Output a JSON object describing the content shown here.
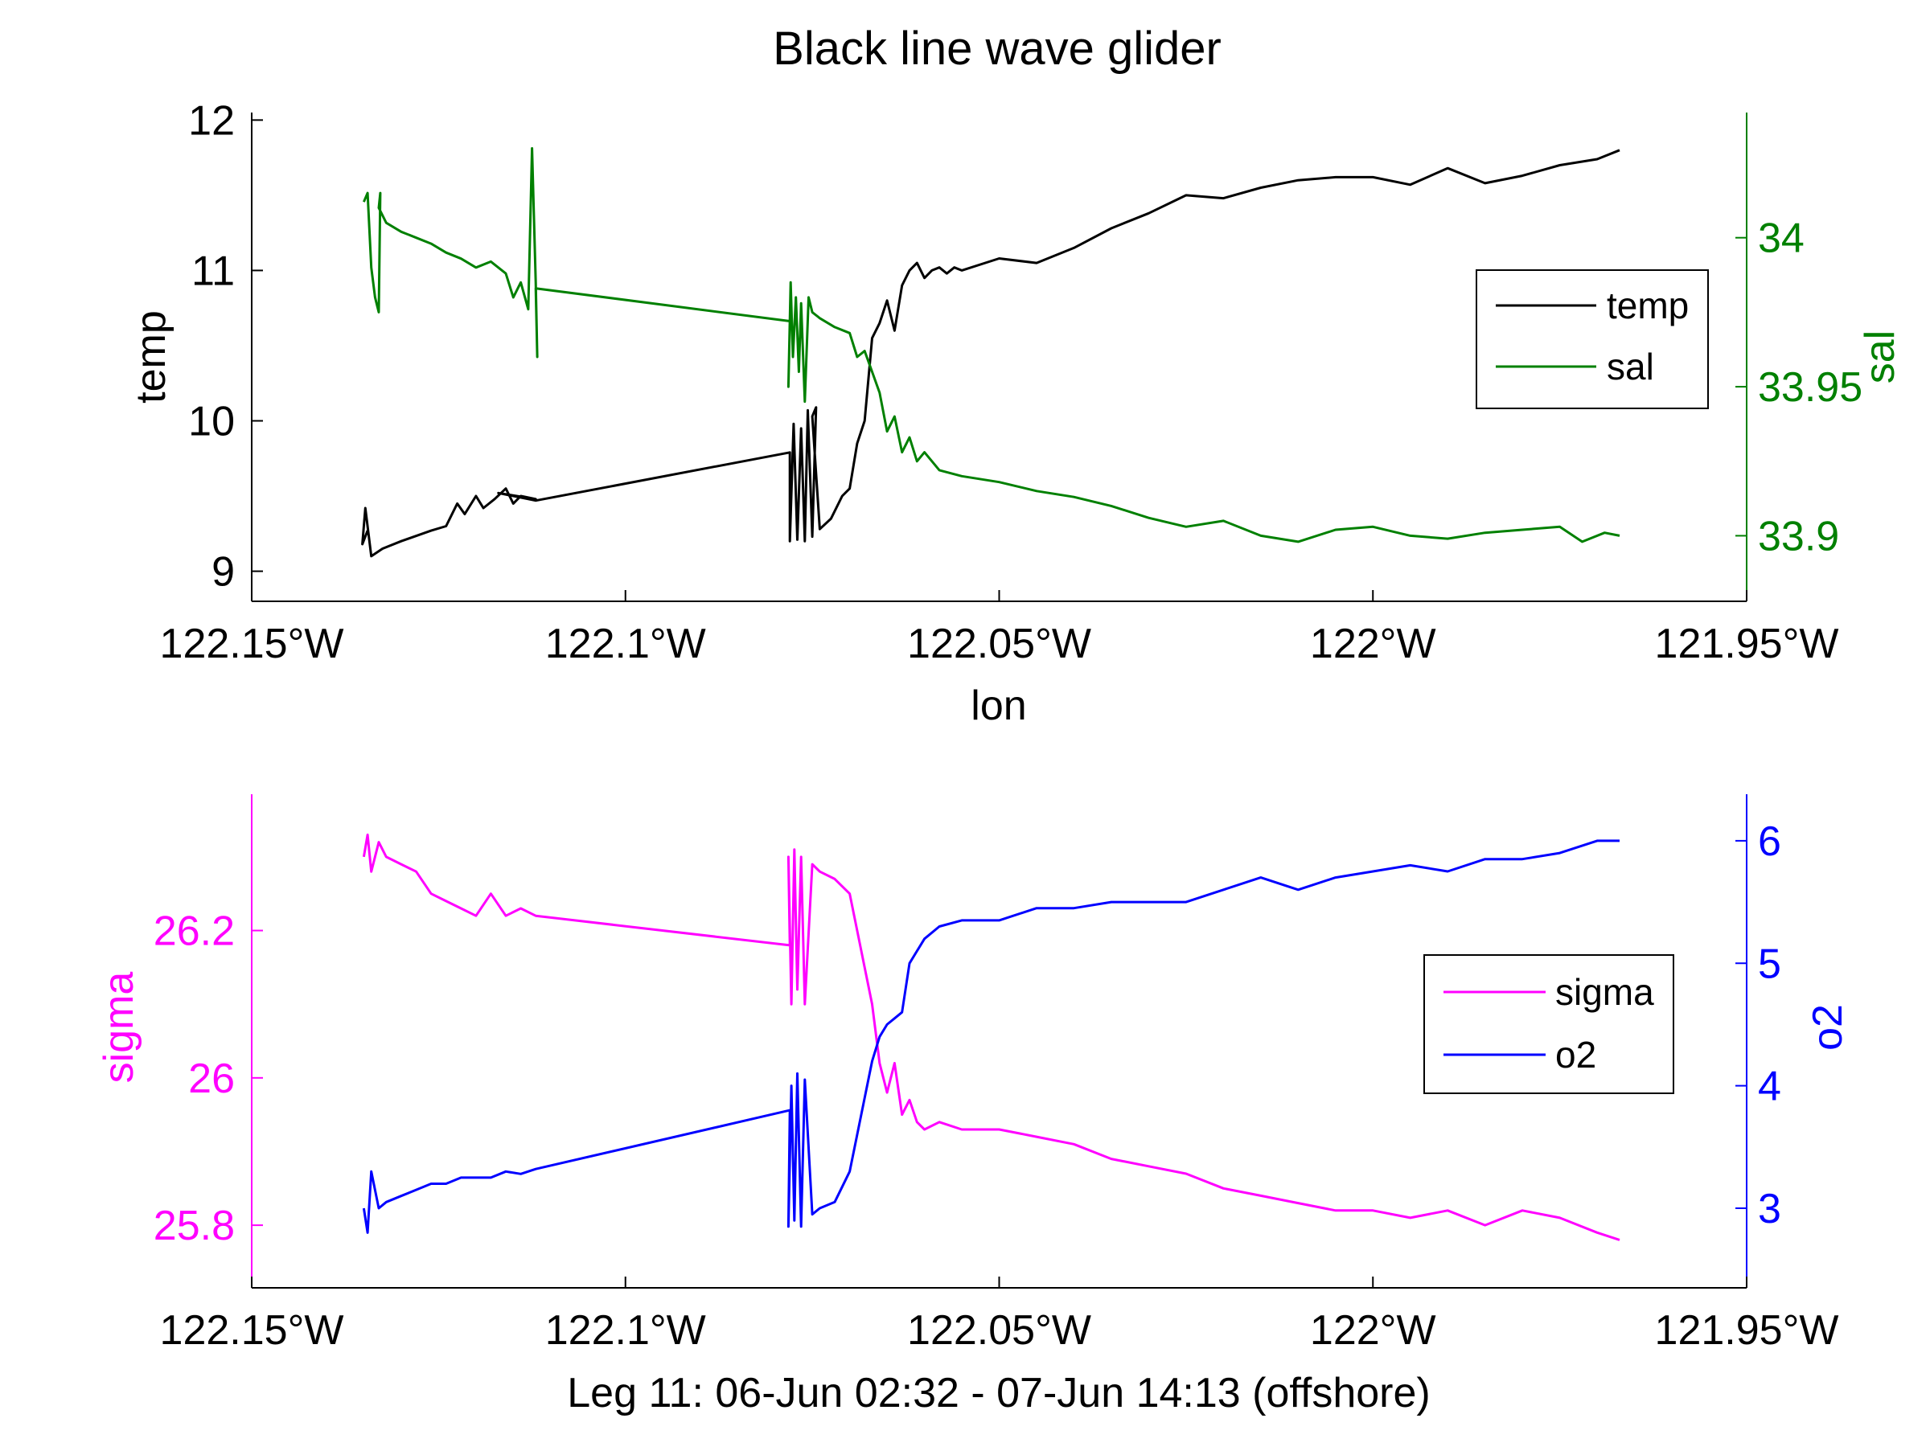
{
  "figure": {
    "title": "Black line wave glider"
  },
  "colors": {
    "temp": "#000000",
    "sal": "#008000",
    "sigma": "#ff00ff",
    "o2": "#0000ff",
    "axis": "#000000"
  },
  "chart_data": [
    {
      "type": "line",
      "panel": "top",
      "xlabel": "lon",
      "xlim": [
        -122.15,
        -121.95
      ],
      "x_ticks": [
        -122.15,
        -122.1,
        -122.05,
        -122.0,
        -121.95
      ],
      "x_tick_labels": [
        "122.15°W",
        "122.1°W",
        "122.05°W",
        "122°W",
        "121.95°W"
      ],
      "left_axis": {
        "label": "temp",
        "ylim": [
          8.8,
          12.05
        ],
        "ticks": [
          9,
          10,
          11,
          12
        ],
        "tick_labels": [
          "9",
          "10",
          "11",
          "12"
        ]
      },
      "right_axis": {
        "label": "sal",
        "ylim": [
          33.878,
          34.042
        ],
        "ticks": [
          33.9,
          33.95,
          34.0
        ],
        "tick_labels": [
          "33.9",
          "33.95",
          "34"
        ]
      },
      "legend": {
        "position": "top-right",
        "entries": [
          "temp",
          "sal"
        ]
      },
      "series": [
        {
          "name": "temp",
          "axis": "left",
          "x": [
            -122.1345,
            -122.1352,
            -122.1348,
            -122.134,
            -122.1325,
            -122.13,
            -122.126,
            -122.124,
            -122.1225,
            -122.1215,
            -122.12,
            -122.119,
            -122.1175,
            -122.116,
            -122.115,
            -122.114,
            -122.112,
            -122.117,
            -122.112,
            -122.078,
            -122.078,
            -122.0775,
            -122.077,
            -122.0765,
            -122.076,
            -122.0756,
            -122.075,
            -122.0745,
            -122.075,
            -122.074,
            -122.0725,
            -122.071,
            -122.07,
            -122.069,
            -122.068,
            -122.067,
            -122.066,
            -122.065,
            -122.064,
            -122.063,
            -122.062,
            -122.061,
            -122.06,
            -122.059,
            -122.058,
            -122.057,
            -122.056,
            -122.055,
            -122.05,
            -122.045,
            -122.04,
            -122.035,
            -122.03,
            -122.025,
            -122.02,
            -122.015,
            -122.01,
            -122.005,
            -122.0,
            -121.995,
            -121.99,
            -121.985,
            -121.98,
            -121.975,
            -121.97,
            -121.967
          ],
          "values": [
            9.27,
            9.18,
            9.42,
            9.1,
            9.15,
            9.2,
            9.27,
            9.3,
            9.45,
            9.38,
            9.5,
            9.42,
            9.48,
            9.55,
            9.45,
            9.5,
            9.48,
            9.52,
            9.47,
            9.79,
            9.2,
            9.98,
            9.21,
            9.95,
            9.2,
            10.07,
            9.23,
            10.09,
            10.03,
            9.28,
            9.35,
            9.5,
            9.55,
            9.85,
            10.0,
            10.55,
            10.65,
            10.8,
            10.6,
            10.9,
            11.0,
            11.05,
            10.95,
            11.0,
            11.02,
            10.98,
            11.02,
            11.0,
            11.08,
            11.05,
            11.15,
            11.28,
            11.38,
            11.5,
            11.48,
            11.55,
            11.6,
            11.62,
            11.62,
            11.57,
            11.68,
            11.58,
            11.63,
            11.7,
            11.74,
            11.8
          ]
        },
        {
          "name": "sal",
          "axis": "right",
          "x": [
            -122.135,
            -122.1345,
            -122.134,
            -122.1335,
            -122.133,
            -122.1328,
            -122.133,
            -122.132,
            -122.13,
            -122.128,
            -122.126,
            -122.124,
            -122.122,
            -122.12,
            -122.118,
            -122.116,
            -122.115,
            -122.114,
            -122.113,
            -122.1125,
            -122.112,
            -122.1118,
            -122.112,
            -122.078,
            -122.0782,
            -122.0779,
            -122.0776,
            -122.0772,
            -122.0768,
            -122.0765,
            -122.076,
            -122.0755,
            -122.075,
            -122.074,
            -122.072,
            -122.07,
            -122.069,
            -122.068,
            -122.067,
            -122.066,
            -122.065,
            -122.064,
            -122.063,
            -122.062,
            -122.061,
            -122.06,
            -122.058,
            -122.055,
            -122.05,
            -122.045,
            -122.04,
            -122.035,
            -122.03,
            -122.025,
            -122.02,
            -122.015,
            -122.01,
            -122.005,
            -122.0,
            -121.995,
            -121.99,
            -121.985,
            -121.98,
            -121.975,
            -121.972,
            -121.969,
            -121.967
          ],
          "values": [
            34.012,
            34.015,
            33.99,
            33.98,
            33.975,
            34.015,
            34.01,
            34.005,
            34.002,
            34.0,
            33.998,
            33.995,
            33.993,
            33.99,
            33.992,
            33.988,
            33.98,
            33.985,
            33.976,
            34.03,
            33.985,
            33.96,
            33.983,
            33.972,
            33.95,
            33.985,
            33.96,
            33.98,
            33.955,
            33.978,
            33.945,
            33.98,
            33.975,
            33.973,
            33.97,
            33.968,
            33.96,
            33.962,
            33.955,
            33.948,
            33.935,
            33.94,
            33.928,
            33.933,
            33.925,
            33.928,
            33.922,
            33.92,
            33.918,
            33.915,
            33.913,
            33.91,
            33.906,
            33.903,
            33.905,
            33.9,
            33.898,
            33.902,
            33.903,
            33.9,
            33.899,
            33.901,
            33.902,
            33.903,
            33.898,
            33.901,
            33.9
          ]
        }
      ]
    },
    {
      "type": "line",
      "panel": "bottom",
      "xlabel": "Leg 11: 06-Jun 02:32 - 07-Jun 14:13 (offshore)",
      "xlim": [
        -122.15,
        -121.95
      ],
      "x_ticks": [
        -122.15,
        -122.1,
        -122.05,
        -122.0,
        -121.95
      ],
      "x_tick_labels": [
        "122.15°W",
        "122.1°W",
        "122.05°W",
        "122°W",
        "121.95°W"
      ],
      "left_axis": {
        "label": "sigma",
        "ylim": [
          25.715,
          26.385
        ],
        "ticks": [
          25.8,
          26.0,
          26.2
        ],
        "tick_labels": [
          "25.8",
          "26",
          "26.2"
        ]
      },
      "right_axis": {
        "label": "o2",
        "ylim": [
          2.35,
          6.38
        ],
        "ticks": [
          3,
          4,
          5,
          6
        ],
        "tick_labels": [
          "3",
          "4",
          "5",
          "6"
        ]
      },
      "legend": {
        "position": "top-right",
        "entries": [
          "sigma",
          "o2"
        ]
      },
      "series": [
        {
          "name": "sigma",
          "axis": "left",
          "x": [
            -122.135,
            -122.1345,
            -122.134,
            -122.133,
            -122.132,
            -122.13,
            -122.128,
            -122.126,
            -122.124,
            -122.122,
            -122.12,
            -122.118,
            -122.116,
            -122.114,
            -122.112,
            -122.078,
            -122.0782,
            -122.0778,
            -122.0774,
            -122.077,
            -122.0765,
            -122.076,
            -122.075,
            -122.074,
            -122.072,
            -122.07,
            -122.069,
            -122.068,
            -122.067,
            -122.066,
            -122.065,
            -122.064,
            -122.063,
            -122.062,
            -122.061,
            -122.06,
            -122.058,
            -122.055,
            -122.05,
            -122.045,
            -122.04,
            -122.035,
            -122.03,
            -122.025,
            -122.02,
            -122.015,
            -122.01,
            -122.005,
            -122.0,
            -121.995,
            -121.99,
            -121.985,
            -121.98,
            -121.975,
            -121.97,
            -121.967
          ],
          "values": [
            26.3,
            26.33,
            26.28,
            26.32,
            26.3,
            26.29,
            26.28,
            26.25,
            26.24,
            26.23,
            26.22,
            26.25,
            26.22,
            26.23,
            26.22,
            26.18,
            26.3,
            26.1,
            26.31,
            26.12,
            26.3,
            26.1,
            26.29,
            26.28,
            26.27,
            26.25,
            26.2,
            26.15,
            26.1,
            26.02,
            25.98,
            26.02,
            25.95,
            25.97,
            25.94,
            25.93,
            25.94,
            25.93,
            25.93,
            25.92,
            25.91,
            25.89,
            25.88,
            25.87,
            25.85,
            25.84,
            25.83,
            25.82,
            25.82,
            25.81,
            25.82,
            25.8,
            25.82,
            25.81,
            25.79,
            25.78
          ]
        },
        {
          "name": "o2",
          "axis": "right",
          "x": [
            -122.135,
            -122.1345,
            -122.134,
            -122.133,
            -122.132,
            -122.13,
            -122.128,
            -122.126,
            -122.124,
            -122.122,
            -122.12,
            -122.118,
            -122.116,
            -122.114,
            -122.112,
            -122.078,
            -122.0782,
            -122.0778,
            -122.0774,
            -122.077,
            -122.0765,
            -122.076,
            -122.075,
            -122.074,
            -122.072,
            -122.07,
            -122.069,
            -122.068,
            -122.067,
            -122.066,
            -122.065,
            -122.064,
            -122.063,
            -122.062,
            -122.061,
            -122.06,
            -122.058,
            -122.055,
            -122.05,
            -122.045,
            -122.04,
            -122.035,
            -122.03,
            -122.025,
            -122.02,
            -122.015,
            -122.01,
            -122.005,
            -122.0,
            -121.995,
            -121.99,
            -121.985,
            -121.98,
            -121.975,
            -121.97,
            -121.967
          ],
          "values": [
            3.0,
            2.8,
            3.3,
            3.0,
            3.05,
            3.1,
            3.15,
            3.2,
            3.2,
            3.25,
            3.25,
            3.25,
            3.3,
            3.28,
            3.32,
            3.8,
            2.85,
            4.0,
            2.9,
            4.1,
            2.85,
            4.05,
            2.95,
            3.0,
            3.05,
            3.3,
            3.6,
            3.9,
            4.2,
            4.4,
            4.5,
            4.55,
            4.6,
            5.0,
            5.1,
            5.2,
            5.3,
            5.35,
            5.35,
            5.45,
            5.45,
            5.5,
            5.5,
            5.5,
            5.6,
            5.7,
            5.6,
            5.7,
            5.75,
            5.8,
            5.75,
            5.85,
            5.85,
            5.9,
            6.0,
            6.0
          ]
        }
      ]
    }
  ]
}
